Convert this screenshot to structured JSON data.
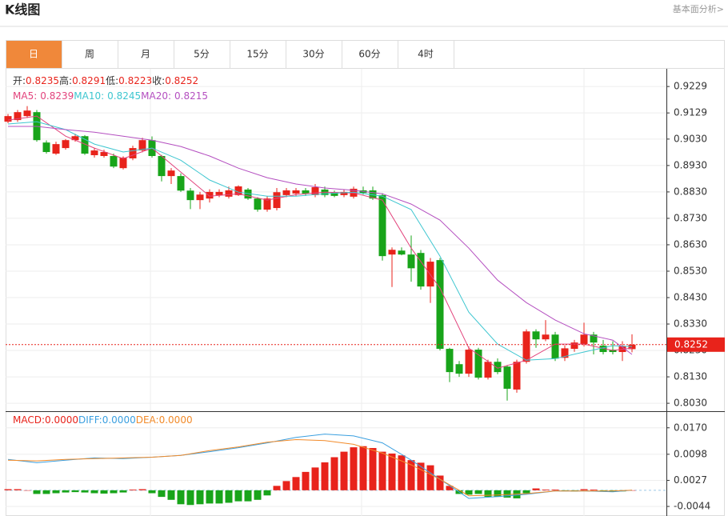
{
  "header": {
    "title": "K线图",
    "link": "基本面分析>"
  },
  "tabs": [
    "日",
    "周",
    "月",
    "5分",
    "15分",
    "30分",
    "60分",
    "4时"
  ],
  "active_tab": 0,
  "chart_data": [
    {
      "type": "candlestick",
      "ylim": [
        0.8,
        0.929
      ],
      "yticks": [
        0.9229,
        0.9129,
        {
          "value": 0.903,
          "label": "0.9030"
        },
        {
          "value": 0.893,
          "label": "0.8930"
        },
        {
          "value": 0.883,
          "label": "0.8830"
        },
        {
          "value": 0.873,
          "label": "0.8730"
        },
        {
          "value": 0.863,
          "label": "0.8630"
        },
        {
          "value": 0.853,
          "label": "0.8530"
        },
        {
          "value": 0.843,
          "label": "0.8430"
        },
        {
          "value": 0.833,
          "label": "0.8330"
        },
        {
          "value": 0.823,
          "label": "0.8230"
        },
        {
          "value": 0.813,
          "label": "0.8130"
        },
        {
          "value": 0.803,
          "label": "0.8030"
        }
      ],
      "up_color": "#e8231b",
      "down_color": "#18a41a",
      "readouts": [
        {
          "name": "开:",
          "value": "0.8235"
        },
        {
          "name": "高:",
          "value": "0.8291"
        },
        {
          "name": "低:",
          "value": "0.8223"
        },
        {
          "name": "收:",
          "value": "0.8252"
        }
      ],
      "open": [
        0.9096,
        0.9102,
        0.9117,
        0.9132,
        0.9017,
        0.8975,
        0.8996,
        0.9026,
        0.9041,
        0.8969,
        0.8966,
        0.8966,
        0.892,
        0.8957,
        0.8987,
        0.9026,
        0.8966,
        0.889,
        0.889,
        0.8835,
        0.8799,
        0.8805,
        0.8818,
        0.8812,
        0.8818,
        0.8839,
        0.8805,
        0.8763,
        0.8769,
        0.8818,
        0.8824,
        0.8836,
        0.8818,
        0.8839,
        0.8829,
        0.8818,
        0.8812,
        0.8836,
        0.8836,
        0.8818,
        0.8593,
        0.8608,
        0.8593,
        0.8599,
        0.8472,
        0.8572,
        0.8236,
        0.8178,
        0.8142,
        0.8233,
        0.8127,
        0.8187,
        0.8169,
        0.8082,
        0.8187,
        0.8302,
        0.8272,
        0.829,
        0.8202,
        0.8236,
        0.8254,
        0.829,
        0.8248,
        0.8233,
        0.8224,
        0.8235
      ],
      "high": [
        0.9125,
        0.914,
        0.9155,
        0.914,
        0.9025,
        0.902,
        0.903,
        0.905,
        0.9045,
        0.8995,
        0.899,
        0.8975,
        0.8965,
        0.9005,
        0.9035,
        0.904,
        0.897,
        0.892,
        0.89,
        0.8845,
        0.883,
        0.884,
        0.884,
        0.885,
        0.8855,
        0.8845,
        0.881,
        0.8815,
        0.8845,
        0.8845,
        0.8845,
        0.8845,
        0.886,
        0.885,
        0.8835,
        0.884,
        0.885,
        0.885,
        0.885,
        0.8825,
        0.862,
        0.862,
        0.8665,
        0.861,
        0.858,
        0.858,
        0.824,
        0.819,
        0.8245,
        0.824,
        0.8195,
        0.82,
        0.8175,
        0.8195,
        0.831,
        0.831,
        0.8345,
        0.83,
        0.825,
        0.827,
        0.8335,
        0.83,
        0.827,
        0.8265,
        0.8265,
        0.8291
      ],
      "low": [
        0.909,
        0.9095,
        0.911,
        0.902,
        0.8975,
        0.897,
        0.899,
        0.902,
        0.897,
        0.896,
        0.896,
        0.892,
        0.8915,
        0.895,
        0.898,
        0.896,
        0.887,
        0.886,
        0.883,
        0.8765,
        0.8765,
        0.879,
        0.881,
        0.8805,
        0.8815,
        0.88,
        0.8755,
        0.8755,
        0.876,
        0.881,
        0.8815,
        0.8815,
        0.881,
        0.881,
        0.881,
        0.881,
        0.8805,
        0.882,
        0.88,
        0.857,
        0.847,
        0.859,
        0.849,
        0.846,
        0.841,
        0.823,
        0.811,
        0.813,
        0.813,
        0.812,
        0.812,
        0.814,
        0.804,
        0.807,
        0.818,
        0.824,
        0.8265,
        0.819,
        0.819,
        0.8225,
        0.8245,
        0.8215,
        0.8215,
        0.8215,
        0.819,
        0.8223
      ],
      "close": [
        0.9117,
        0.9132,
        0.9138,
        0.9026,
        0.8981,
        0.9011,
        0.9026,
        0.9041,
        0.8975,
        0.8987,
        0.8981,
        0.8926,
        0.896,
        0.8996,
        0.9026,
        0.8966,
        0.889,
        0.8911,
        0.8835,
        0.8799,
        0.882,
        0.883,
        0.883,
        0.8836,
        0.8851,
        0.8805,
        0.8763,
        0.8805,
        0.8829,
        0.8836,
        0.8836,
        0.8824,
        0.8848,
        0.8818,
        0.8815,
        0.883,
        0.8842,
        0.8826,
        0.8805,
        0.8587,
        0.8611,
        0.8593,
        0.8541,
        0.8472,
        0.8566,
        0.8236,
        0.8148,
        0.8142,
        0.8233,
        0.8127,
        0.8187,
        0.8148,
        0.8085,
        0.8187,
        0.8302,
        0.8272,
        0.829,
        0.8199,
        0.8238,
        0.826,
        0.829,
        0.826,
        0.8224,
        0.8224,
        0.8245,
        0.8252
      ],
      "series": [
        {
          "name": "MA5:",
          "readout": "0.8239",
          "color": "#e2437c",
          "x": [
            0,
            3,
            6,
            9,
            12,
            15,
            18,
            21,
            24,
            27,
            30,
            33,
            36,
            39,
            42,
            45,
            48,
            51,
            54,
            57,
            60,
            63,
            65
          ],
          "values": [
            0.9102,
            0.9117,
            0.9041,
            0.8996,
            0.8956,
            0.8996,
            0.8905,
            0.8814,
            0.8823,
            0.8799,
            0.882,
            0.8829,
            0.8826,
            0.8799,
            0.8617,
            0.8466,
            0.8239,
            0.8163,
            0.8193,
            0.8254,
            0.8254,
            0.823,
            0.8239
          ]
        },
        {
          "name": "MA10:",
          "readout": "0.8245",
          "color": "#3ec6d0",
          "x": [
            0,
            3,
            6,
            9,
            12,
            15,
            18,
            21,
            24,
            27,
            30,
            33,
            36,
            39,
            42,
            45,
            48,
            51,
            54,
            57,
            60,
            63,
            65
          ],
          "values": [
            0.9087,
            0.9096,
            0.9066,
            0.9011,
            0.8981,
            0.8996,
            0.895,
            0.8875,
            0.8829,
            0.8814,
            0.8814,
            0.8823,
            0.8829,
            0.8814,
            0.8763,
            0.8587,
            0.8375,
            0.8254,
            0.8193,
            0.8199,
            0.8224,
            0.8248,
            0.8245
          ]
        },
        {
          "name": "MA20:",
          "readout": "0.8215",
          "color": "#b44fc0",
          "x": [
            0,
            3,
            6,
            9,
            12,
            15,
            18,
            21,
            24,
            27,
            30,
            33,
            36,
            39,
            42,
            45,
            48,
            51,
            54,
            57,
            60,
            63,
            65
          ],
          "values": [
            0.9078,
            0.9078,
            0.9066,
            0.9056,
            0.9041,
            0.9026,
            0.9002,
            0.8966,
            0.892,
            0.8884,
            0.886,
            0.8845,
            0.8836,
            0.8823,
            0.8784,
            0.8723,
            0.8617,
            0.8496,
            0.8411,
            0.8345,
            0.8293,
            0.8269,
            0.8215
          ]
        }
      ],
      "last_price": 0.8252
    },
    {
      "type": "macd",
      "ylim": [
        -0.007,
        0.0213
      ],
      "yticks": [
        {
          "value": 0.017,
          "label": "0.0170"
        },
        0.0098,
        0.0027,
        -0.0044
      ],
      "up_color": "#e8231b",
      "down_color": "#18a41a",
      "histogram": {
        "name": "MACD:",
        "readout": "0.0000",
        "color": "#e8231b",
        "values": [
          0.0003,
          0.0003,
          0,
          -0.001,
          -0.001,
          -0.0008,
          -0.0006,
          -0.0005,
          -0.0006,
          -0.0008,
          -0.0009,
          -0.0008,
          -0.0006,
          0.0002,
          0.0003,
          -0.0008,
          -0.0018,
          -0.0026,
          -0.0038,
          -0.004,
          -0.0038,
          -0.0036,
          -0.0036,
          -0.0034,
          -0.003,
          -0.003,
          -0.0026,
          -0.0014,
          0.0012,
          0.0025,
          0.0036,
          0.005,
          0.0062,
          0.0076,
          0.009,
          0.0105,
          0.0117,
          0.012,
          0.0115,
          0.0105,
          0.01,
          0.0095,
          0.0082,
          0.0075,
          0.0068,
          0.004,
          0.0012,
          -0.001,
          -0.0012,
          -0.001,
          -0.0018,
          -0.0018,
          -0.002,
          -0.0022,
          -0.0008,
          0.0005,
          0.0002,
          0.0002,
          -0.0002,
          -0.0003,
          0.0003,
          0.0002,
          -0.0002,
          -0.0004,
          -0.0003,
          0
        ]
      },
      "series": [
        {
          "name": "DIFF:",
          "readout": "0.0000",
          "color": "#3a9fe0",
          "x": [
            0,
            3,
            6,
            9,
            12,
            15,
            18,
            21,
            24,
            27,
            30,
            33,
            36,
            39,
            42,
            45,
            48,
            51,
            54,
            57,
            60,
            63,
            65
          ],
          "values": [
            0.0084,
            0.0075,
            0.0082,
            0.0088,
            0.0086,
            0.009,
            0.0095,
            0.0105,
            0.0116,
            0.0129,
            0.0144,
            0.0153,
            0.0148,
            0.0129,
            0.0082,
            0.003,
            -0.0022,
            -0.0017,
            -0.0011,
            -0.0002,
            -0.0002,
            -0.0004,
            0
          ]
        },
        {
          "name": "DEA:",
          "readout": "0.0000",
          "color": "#f28b2a",
          "x": [
            0,
            3,
            6,
            9,
            12,
            15,
            18,
            21,
            24,
            27,
            30,
            33,
            36,
            39,
            42,
            45,
            48,
            51,
            54,
            57,
            60,
            63,
            65
          ],
          "values": [
            0.0082,
            0.008,
            0.0084,
            0.0086,
            0.0088,
            0.009,
            0.0095,
            0.0108,
            0.0118,
            0.0131,
            0.0138,
            0.0135,
            0.0125,
            0.0101,
            0.0069,
            0.003,
            -0.0015,
            -0.0013,
            -0.0009,
            -0.0002,
            -0.0002,
            -0.0002,
            0
          ]
        }
      ]
    }
  ]
}
